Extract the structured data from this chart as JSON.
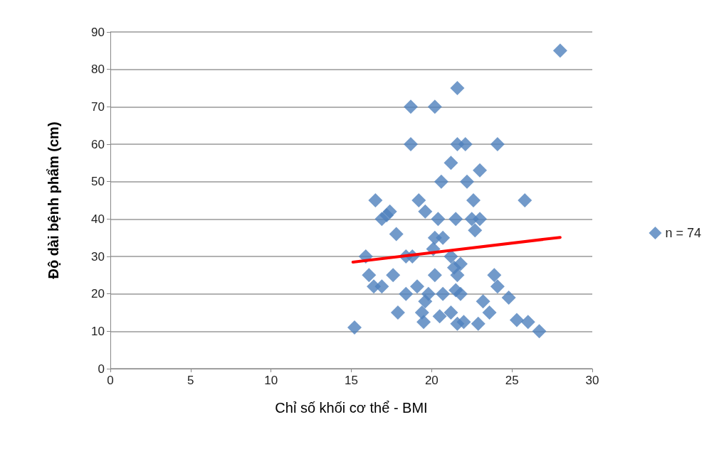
{
  "chart_data": {
    "type": "scatter",
    "xlabel": "Chỉ số khối cơ thể - BMI",
    "ylabel": "Độ dài bệnh phẩm (cm)",
    "xlim": [
      0,
      30
    ],
    "xticks": [
      0,
      5,
      10,
      15,
      20,
      25,
      30
    ],
    "ylim": [
      0,
      90
    ],
    "yticks": [
      0,
      10,
      20,
      30,
      40,
      50,
      60,
      70,
      80,
      90
    ],
    "grid": "y",
    "legend": "right",
    "marker": "diamond",
    "series": [
      {
        "name": "n = 74",
        "color": "#4f81bd",
        "x": [
          28.0,
          21.6,
          18.7,
          20.2,
          18.7,
          21.6,
          22.1,
          24.1,
          21.2,
          23.0,
          20.6,
          22.2,
          16.5,
          19.2,
          22.6,
          25.8,
          17.4,
          17.2,
          16.9,
          19.6,
          20.4,
          21.5,
          22.5,
          23.0,
          22.7,
          17.8,
          20.2,
          20.7,
          20.1,
          15.9,
          18.4,
          18.8,
          21.2,
          21.8,
          21.4,
          16.1,
          17.6,
          20.2,
          21.6,
          23.9,
          16.4,
          16.9,
          24.1,
          19.1,
          18.4,
          19.8,
          20.7,
          21.8,
          21.5,
          19.6,
          23.2,
          24.8,
          17.9,
          19.4,
          20.5,
          21.2,
          23.6,
          19.5,
          21.6,
          22.0,
          22.9,
          25.3,
          26.0,
          26.7,
          15.2
        ],
        "values": [
          85,
          75,
          70,
          70,
          60,
          60,
          60,
          60,
          55,
          53,
          50,
          50,
          45,
          45,
          45,
          45,
          42,
          41,
          40,
          42,
          40,
          40,
          40,
          40,
          37,
          36,
          35,
          35,
          32,
          30,
          30,
          30,
          30,
          28,
          27,
          25,
          25,
          25,
          25,
          25,
          22,
          22,
          22,
          22,
          20,
          20,
          20,
          20,
          21,
          18,
          18,
          19,
          15,
          15,
          14,
          15,
          15,
          12.5,
          12,
          12.5,
          12,
          13,
          12.5,
          10,
          11
        ]
      },
      {
        "color": "#ff0000",
        "type": "line",
        "marker": "none",
        "line_style": "solid",
        "x": [
          15.1,
          28.0
        ],
        "values": [
          28.5,
          35.1
        ]
      }
    ]
  }
}
